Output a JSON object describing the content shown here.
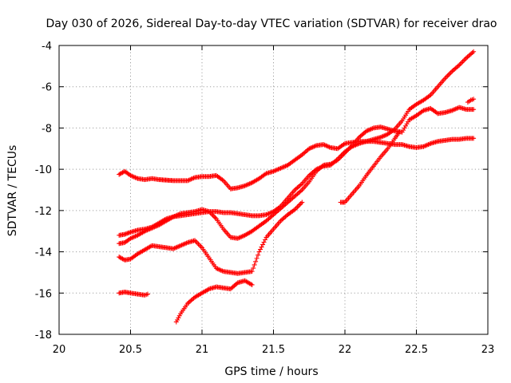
{
  "chart_data": {
    "type": "scatter",
    "title": "Day 030 of 2026, Sidereal Day-to-day VTEC variation (SDTVAR) for receiver drao",
    "xlabel": "GPS time / hours",
    "ylabel": "SDTVAR / TECUs",
    "xlim": [
      20,
      23
    ],
    "ylim": [
      -18,
      -4
    ],
    "xticks": [
      20,
      20.5,
      21,
      21.5,
      22,
      22.5,
      23
    ],
    "xtick_labels": [
      "20",
      "20.5",
      "21",
      "21.5",
      "22",
      "22.5",
      "23"
    ],
    "yticks": [
      -18,
      -16,
      -14,
      -12,
      -10,
      -8,
      -6,
      -4
    ],
    "ytick_labels": [
      "-18",
      "-16",
      "-14",
      "-12",
      "-10",
      "-8",
      "-6",
      "-4"
    ],
    "grid": true,
    "marker": "plus",
    "color": "#ff0000",
    "series": [
      {
        "name": "track-1",
        "x": [
          20.42,
          20.46,
          20.5,
          20.55,
          20.6,
          20.65,
          20.7,
          20.8,
          20.9,
          20.95,
          21.0,
          21.05,
          21.1,
          21.15,
          21.2,
          21.25,
          21.3,
          21.35,
          21.4,
          21.45,
          21.5,
          21.55,
          21.6,
          21.7,
          21.75,
          21.8,
          21.85,
          21.9,
          21.95,
          22.0,
          22.05,
          22.1,
          22.15,
          22.2,
          22.25,
          22.3,
          22.35,
          22.4,
          22.45,
          22.5,
          22.55,
          22.6,
          22.65,
          22.7,
          22.75,
          22.8,
          22.85,
          22.9
        ],
        "y": [
          -10.25,
          -10.1,
          -10.3,
          -10.45,
          -10.5,
          -10.45,
          -10.5,
          -10.55,
          -10.55,
          -10.4,
          -10.35,
          -10.35,
          -10.3,
          -10.55,
          -10.95,
          -10.9,
          -10.8,
          -10.65,
          -10.45,
          -10.2,
          -10.1,
          -9.95,
          -9.8,
          -9.3,
          -9.0,
          -8.85,
          -8.8,
          -8.95,
          -9.0,
          -8.75,
          -8.7,
          -8.65,
          -8.65,
          -8.65,
          -8.7,
          -8.75,
          -8.8,
          -8.8,
          -8.9,
          -8.95,
          -8.9,
          -8.75,
          -8.65,
          -8.6,
          -8.55,
          -8.55,
          -8.5,
          -8.5
        ]
      },
      {
        "name": "track-2",
        "x": [
          20.42,
          20.46,
          20.5,
          20.55,
          20.6,
          20.65,
          20.7,
          20.75,
          20.8,
          20.85,
          20.9,
          20.95,
          21.0,
          21.05,
          21.1,
          21.15,
          21.2,
          21.25,
          21.3,
          21.35,
          21.4,
          21.45,
          21.5,
          21.55,
          21.6,
          21.65,
          21.7,
          21.75,
          21.8,
          21.85,
          21.9,
          21.95,
          22.0,
          22.05,
          22.1,
          22.15,
          22.2,
          22.25,
          22.3,
          22.35,
          22.4,
          22.45,
          22.5,
          22.55,
          22.6,
          22.65,
          22.7,
          22.75,
          22.8,
          22.85,
          22.9
        ],
        "y": [
          -13.2,
          -13.15,
          -13.05,
          -12.95,
          -12.9,
          -12.8,
          -12.6,
          -12.4,
          -12.3,
          -12.25,
          -12.2,
          -12.15,
          -12.1,
          -12.05,
          -12.05,
          -12.1,
          -12.1,
          -12.15,
          -12.2,
          -12.25,
          -12.25,
          -12.2,
          -12.05,
          -11.8,
          -11.4,
          -11.0,
          -10.7,
          -10.3,
          -10.0,
          -9.85,
          -9.8,
          -9.5,
          -9.15,
          -8.9,
          -8.75,
          -8.65,
          -8.55,
          -8.45,
          -8.3,
          -8.05,
          -7.65,
          -7.1,
          -6.85,
          -6.65,
          -6.4,
          -6.0,
          -5.6,
          -5.25,
          -4.95,
          -4.6,
          -4.3
        ]
      },
      {
        "name": "track-3",
        "x": [
          20.42,
          20.46,
          20.5,
          20.55,
          20.6,
          20.65,
          20.7,
          20.75,
          20.8,
          20.85,
          20.9,
          20.95,
          21.0,
          21.05,
          21.1,
          21.15,
          21.2,
          21.25,
          21.3,
          21.35,
          21.4,
          21.45,
          21.5,
          21.55,
          21.6,
          21.65,
          21.7,
          21.75,
          21.8,
          21.85,
          21.9,
          21.95,
          22.0,
          22.05,
          22.1,
          22.15,
          22.2,
          22.25,
          22.3,
          22.35,
          22.4,
          22.45,
          22.5,
          22.55,
          22.6,
          22.65,
          22.7,
          22.75,
          22.8,
          22.85,
          22.9
        ],
        "y": [
          -13.6,
          -13.55,
          -13.35,
          -13.2,
          -13.0,
          -12.85,
          -12.7,
          -12.5,
          -12.3,
          -12.15,
          -12.1,
          -12.05,
          -11.95,
          -12.05,
          -12.4,
          -12.9,
          -13.3,
          -13.35,
          -13.2,
          -13.0,
          -12.75,
          -12.5,
          -12.2,
          -11.9,
          -11.6,
          -11.3,
          -11.0,
          -10.6,
          -10.1,
          -9.8,
          -9.75,
          -9.55,
          -9.2,
          -8.85,
          -8.45,
          -8.15,
          -8.0,
          -7.95,
          -8.05,
          -8.15,
          -8.2,
          -7.6,
          -7.4,
          -7.15,
          -7.05,
          -7.3,
          -7.25,
          -7.15,
          -7.0,
          -7.1,
          -7.1
        ]
      },
      {
        "name": "track-4",
        "x": [
          20.42,
          20.46,
          20.5,
          20.55,
          20.6,
          20.65,
          20.7,
          20.75,
          20.8,
          20.85,
          20.9,
          20.95,
          21.0,
          21.05,
          21.1,
          21.15,
          21.2,
          21.25,
          21.3,
          21.35,
          21.4,
          21.45,
          21.5,
          21.55,
          21.6,
          21.65,
          21.7
        ],
        "y": [
          -14.25,
          -14.4,
          -14.35,
          -14.1,
          -13.9,
          -13.7,
          -13.75,
          -13.8,
          -13.85,
          -13.7,
          -13.55,
          -13.45,
          -13.8,
          -14.3,
          -14.8,
          -14.95,
          -15.0,
          -15.05,
          -15.0,
          -14.95,
          -14.0,
          -13.3,
          -12.9,
          -12.5,
          -12.2,
          -11.95,
          -11.6
        ]
      },
      {
        "name": "track-5",
        "x": [
          20.82,
          20.85,
          20.9,
          20.95,
          21.0,
          21.05,
          21.1,
          21.15,
          21.2,
          21.25,
          21.3,
          21.35
        ],
        "y": [
          -17.4,
          -17.0,
          -16.5,
          -16.2,
          -16.0,
          -15.8,
          -15.7,
          -15.75,
          -15.8,
          -15.5,
          -15.4,
          -15.6
        ]
      },
      {
        "name": "track-6",
        "x": [
          20.42,
          20.46,
          20.5,
          20.55,
          20.6,
          20.62
        ],
        "y": [
          -16.0,
          -15.95,
          -16.0,
          -16.05,
          -16.1,
          -16.05
        ]
      },
      {
        "name": "track-7",
        "x": [
          21.97,
          22.0,
          22.05,
          22.1,
          22.15,
          22.2,
          22.25,
          22.3,
          22.35,
          22.38
        ],
        "y": [
          -11.6,
          -11.6,
          -11.2,
          -10.8,
          -10.3,
          -9.85,
          -9.4,
          -9.0,
          -8.5,
          -8.2
        ]
      },
      {
        "name": "track-8",
        "x": [
          22.86,
          22.88,
          22.9
        ],
        "y": [
          -6.75,
          -6.65,
          -6.6
        ]
      }
    ]
  }
}
